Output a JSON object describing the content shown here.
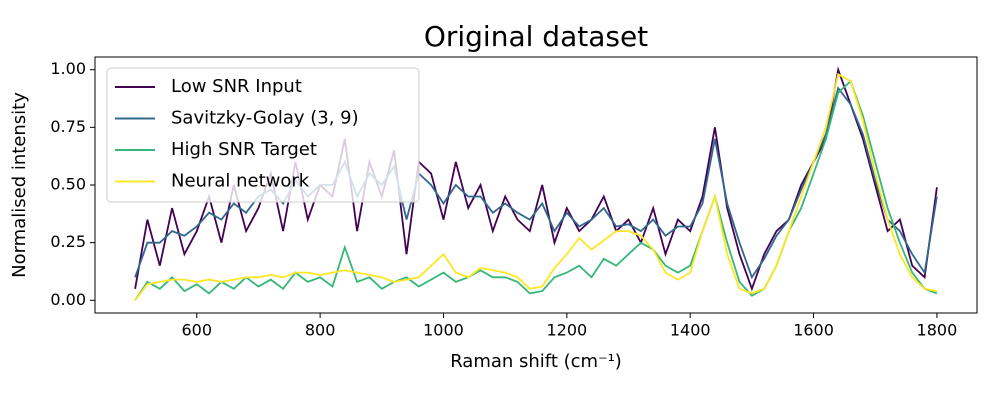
{
  "chart_data": {
    "type": "line",
    "title": "Original dataset",
    "xlabel": "Raman shift (cm⁻¹)",
    "ylabel": "Normalised intensity",
    "x": [
      500,
      520,
      540,
      560,
      580,
      600,
      620,
      640,
      660,
      680,
      700,
      720,
      740,
      760,
      780,
      800,
      820,
      840,
      860,
      880,
      900,
      920,
      940,
      960,
      980,
      1000,
      1020,
      1040,
      1060,
      1080,
      1100,
      1120,
      1140,
      1160,
      1180,
      1200,
      1220,
      1240,
      1260,
      1280,
      1300,
      1320,
      1340,
      1360,
      1380,
      1400,
      1420,
      1440,
      1460,
      1480,
      1500,
      1520,
      1540,
      1560,
      1580,
      1600,
      1620,
      1640,
      1660,
      1680,
      1700,
      1720,
      1740,
      1760,
      1780,
      1800
    ],
    "series": [
      {
        "name": "Low SNR Input",
        "color": "#440154",
        "values": [
          0.05,
          0.35,
          0.15,
          0.4,
          0.2,
          0.3,
          0.45,
          0.25,
          0.5,
          0.3,
          0.4,
          0.55,
          0.3,
          0.6,
          0.35,
          0.5,
          0.45,
          0.7,
          0.3,
          0.6,
          0.45,
          0.65,
          0.2,
          0.6,
          0.55,
          0.35,
          0.6,
          0.4,
          0.5,
          0.3,
          0.45,
          0.35,
          0.3,
          0.5,
          0.25,
          0.4,
          0.3,
          0.35,
          0.45,
          0.3,
          0.35,
          0.25,
          0.4,
          0.2,
          0.35,
          0.3,
          0.45,
          0.75,
          0.4,
          0.2,
          0.05,
          0.2,
          0.3,
          0.35,
          0.5,
          0.6,
          0.7,
          1.0,
          0.85,
          0.7,
          0.5,
          0.3,
          0.35,
          0.15,
          0.1,
          0.49
        ]
      },
      {
        "name": "Savitzky-Golay (3, 9)",
        "color": "#31688e",
        "values": [
          0.1,
          0.25,
          0.25,
          0.3,
          0.28,
          0.32,
          0.38,
          0.35,
          0.42,
          0.38,
          0.45,
          0.48,
          0.42,
          0.52,
          0.45,
          0.5,
          0.5,
          0.6,
          0.45,
          0.55,
          0.5,
          0.58,
          0.35,
          0.55,
          0.5,
          0.42,
          0.5,
          0.45,
          0.45,
          0.38,
          0.42,
          0.38,
          0.35,
          0.42,
          0.3,
          0.38,
          0.32,
          0.35,
          0.4,
          0.32,
          0.33,
          0.3,
          0.35,
          0.28,
          0.32,
          0.32,
          0.42,
          0.7,
          0.42,
          0.25,
          0.1,
          0.18,
          0.28,
          0.35,
          0.48,
          0.6,
          0.72,
          0.92,
          0.85,
          0.72,
          0.52,
          0.35,
          0.3,
          0.2,
          0.12,
          0.45
        ]
      },
      {
        "name": "High SNR Target",
        "color": "#35b779",
        "values": [
          0.0,
          0.08,
          0.05,
          0.1,
          0.04,
          0.07,
          0.03,
          0.08,
          0.05,
          0.1,
          0.06,
          0.09,
          0.05,
          0.12,
          0.08,
          0.1,
          0.06,
          0.23,
          0.08,
          0.1,
          0.05,
          0.08,
          0.1,
          0.06,
          0.09,
          0.12,
          0.08,
          0.1,
          0.13,
          0.1,
          0.1,
          0.08,
          0.03,
          0.04,
          0.1,
          0.12,
          0.15,
          0.1,
          0.18,
          0.15,
          0.2,
          0.25,
          0.22,
          0.15,
          0.12,
          0.15,
          0.3,
          0.45,
          0.25,
          0.08,
          0.02,
          0.05,
          0.15,
          0.3,
          0.4,
          0.55,
          0.7,
          0.9,
          0.95,
          0.8,
          0.6,
          0.4,
          0.25,
          0.12,
          0.05,
          0.03
        ]
      },
      {
        "name": "Neural network",
        "color": "#fde725",
        "values": [
          0.0,
          0.07,
          0.08,
          0.09,
          0.09,
          0.08,
          0.09,
          0.08,
          0.09,
          0.1,
          0.1,
          0.11,
          0.1,
          0.12,
          0.12,
          0.11,
          0.12,
          0.13,
          0.12,
          0.11,
          0.1,
          0.08,
          0.09,
          0.1,
          0.15,
          0.2,
          0.12,
          0.1,
          0.14,
          0.13,
          0.12,
          0.1,
          0.05,
          0.06,
          0.14,
          0.2,
          0.27,
          0.22,
          0.26,
          0.3,
          0.3,
          0.28,
          0.22,
          0.12,
          0.09,
          0.12,
          0.3,
          0.45,
          0.2,
          0.05,
          0.03,
          0.05,
          0.15,
          0.3,
          0.45,
          0.6,
          0.75,
          0.98,
          0.95,
          0.78,
          0.55,
          0.35,
          0.2,
          0.1,
          0.05,
          0.04
        ]
      }
    ],
    "xlim": [
      435,
      1865
    ],
    "xticks": [
      600,
      800,
      1000,
      1200,
      1400,
      1600,
      1800
    ],
    "ylim": [
      -0.055,
      1.055
    ],
    "yticks": [
      {
        "value": 0,
        "label": "0.00"
      },
      {
        "value": 0.25,
        "label": "0.25"
      },
      {
        "value": 0.5,
        "label": "0.50"
      },
      {
        "value": 0.75,
        "label": "0.75"
      },
      {
        "value": 1,
        "label": "1.00"
      }
    ],
    "legend": "upper left"
  }
}
